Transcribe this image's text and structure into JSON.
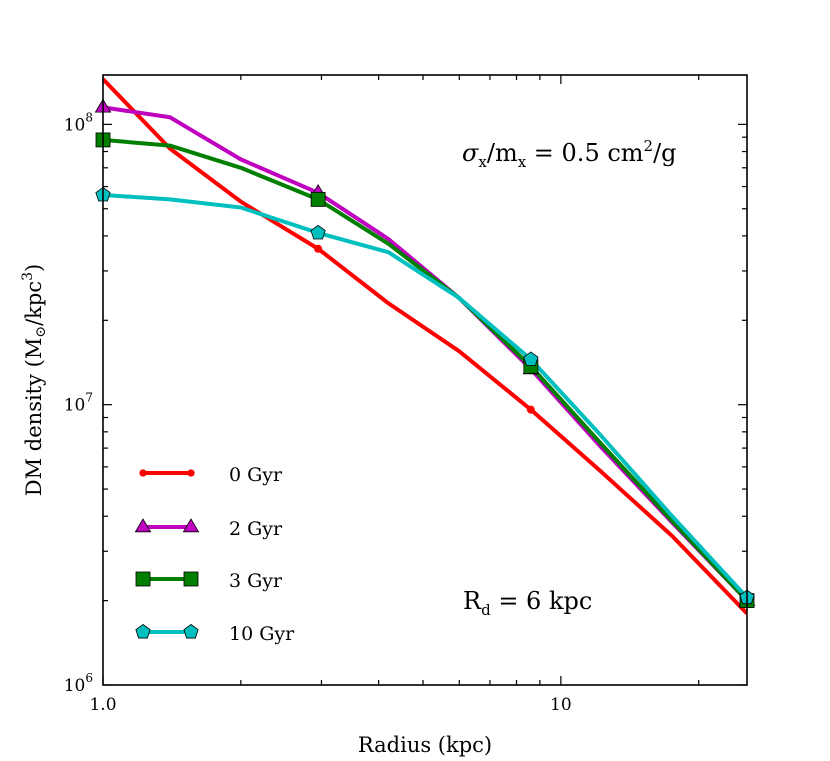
{
  "chart_data": {
    "type": "line",
    "xscale": "log",
    "yscale": "log",
    "xlim": [
      1.0,
      25.5
    ],
    "ylim": [
      1000000,
      150000000
    ],
    "xlabel": "Radius (kpc)",
    "ylabel_main": "DM density (M",
    "ylabel_sun": "⊙",
    "ylabel_unit": "/kpc",
    "ylabel_exp": "3",
    "ylabel_close": ")",
    "x_ticks": [
      {
        "value": 1.0,
        "label": "1.0"
      },
      {
        "value": 10,
        "label": "10"
      }
    ],
    "y_ticks": [
      {
        "value": 1000000,
        "base": "10",
        "exp": "6"
      },
      {
        "value": 10000000,
        "base": "10",
        "exp": "7"
      },
      {
        "value": 100000000,
        "base": "10",
        "exp": "8"
      }
    ],
    "annotation_sigma": {
      "sigma": "σ",
      "sub1": "x",
      "slash": "/m",
      "sub2": "x",
      "eq": " = 0.5 cm",
      "sup": "2",
      "tail": "/g"
    },
    "annotation_rd": {
      "base": "R",
      "sub": "d",
      "rest": " = 6 kpc"
    },
    "series": [
      {
        "name": "0 Gyr",
        "color": "#ff0000",
        "marker": "dot",
        "x": [
          1.0,
          1.4,
          2.0,
          2.95,
          4.2,
          6.0,
          8.6,
          12.2,
          17.5,
          25.5
        ],
        "y": [
          145000000,
          82000000,
          53000000,
          36000000,
          23000000,
          15500000,
          9600000,
          5800000,
          3400000,
          1800000
        ],
        "markers_x": [
          2.95,
          8.6
        ]
      },
      {
        "name": "2 Gyr",
        "color": "#bf00bf",
        "marker": "triangle",
        "x": [
          1.0,
          1.4,
          2.0,
          2.95,
          4.2,
          6.0,
          8.6,
          12.2,
          17.5,
          25.5
        ],
        "y": [
          115000000,
          106000000,
          75000000,
          57000000,
          39000000,
          24000000,
          13400000,
          7100000,
          3800000,
          2000000
        ],
        "markers_x": [
          1.0,
          2.95,
          8.6,
          25.5
        ]
      },
      {
        "name": "3 Gyr",
        "color": "#007f00",
        "marker": "square",
        "x": [
          1.0,
          1.4,
          2.0,
          2.95,
          4.2,
          6.0,
          8.6,
          12.2,
          17.5,
          25.5
        ],
        "y": [
          88000000,
          84000000,
          70000000,
          54000000,
          37500000,
          24000000,
          13700000,
          7300000,
          3850000,
          2000000
        ],
        "markers_x": [
          1.0,
          2.95,
          8.6,
          25.5
        ]
      },
      {
        "name": "10 Gyr",
        "color": "#00bfbf",
        "marker": "pentagon",
        "x": [
          1.0,
          1.4,
          2.0,
          2.95,
          4.2,
          6.0,
          8.6,
          12.2,
          17.5,
          25.5
        ],
        "y": [
          56000000,
          54000000,
          50500000,
          41000000,
          35000000,
          24000000,
          14500000,
          7800000,
          4000000,
          2050000
        ],
        "markers_x": [
          1.0,
          2.95,
          8.6,
          25.5
        ]
      }
    ]
  }
}
